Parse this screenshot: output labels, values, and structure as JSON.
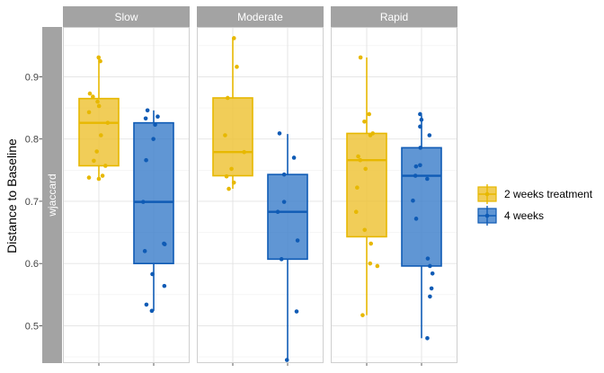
{
  "chart_data": {
    "type": "box",
    "ylabel": "Distance to Baseline",
    "row_strip": "wjaccard",
    "panels": [
      "Slow",
      "Moderate",
      "Rapid"
    ],
    "yticks": [
      0.5,
      0.6,
      0.7,
      0.8,
      0.9
    ],
    "ylim": [
      0.44,
      0.98
    ],
    "grid": true,
    "legend_position": "right",
    "series": [
      {
        "name": "2 weeks treatment",
        "color": "#E7B800",
        "fill": "#EEC233"
      },
      {
        "name": "4 weeks",
        "color": "#0F5BB5",
        "fill": "#3D7FCB"
      }
    ],
    "boxes": [
      {
        "panel": "Slow",
        "series": "2 weeks treatment",
        "whisker_low": 0.736,
        "q1": 0.757,
        "median": 0.826,
        "q3": 0.865,
        "whisker_high": 0.931,
        "points": [
          0.931,
          0.925,
          0.873,
          0.868,
          0.86,
          0.853,
          0.843,
          0.826,
          0.806,
          0.78,
          0.765,
          0.757,
          0.741,
          0.738,
          0.736
        ]
      },
      {
        "panel": "Slow",
        "series": "4 weeks",
        "whisker_low": 0.524,
        "q1": 0.6,
        "median": 0.699,
        "q3": 0.826,
        "whisker_high": 0.846,
        "points": [
          0.846,
          0.836,
          0.833,
          0.823,
          0.8,
          0.766,
          0.699,
          0.632,
          0.631,
          0.62,
          0.583,
          0.564,
          0.534,
          0.524
        ]
      },
      {
        "panel": "Moderate",
        "series": "2 weeks treatment",
        "whisker_low": 0.72,
        "q1": 0.741,
        "median": 0.779,
        "q3": 0.866,
        "whisker_high": 0.962,
        "points": [
          0.962,
          0.916,
          0.866,
          0.806,
          0.779,
          0.752,
          0.74,
          0.73,
          0.72
        ]
      },
      {
        "panel": "Moderate",
        "series": "4 weeks",
        "whisker_low": 0.445,
        "q1": 0.607,
        "median": 0.683,
        "q3": 0.743,
        "whisker_high": 0.808,
        "points": [
          0.809,
          0.77,
          0.743,
          0.699,
          0.683,
          0.637,
          0.607,
          0.523,
          0.445
        ]
      },
      {
        "panel": "Rapid",
        "series": "2 weeks treatment",
        "whisker_low": 0.517,
        "q1": 0.643,
        "median": 0.766,
        "q3": 0.809,
        "whisker_high": 0.931,
        "points": [
          0.931,
          0.84,
          0.828,
          0.809,
          0.806,
          0.772,
          0.766,
          0.752,
          0.722,
          0.683,
          0.654,
          0.632,
          0.6,
          0.596,
          0.517
        ]
      },
      {
        "panel": "Rapid",
        "series": "4 weeks",
        "whisker_low": 0.48,
        "q1": 0.596,
        "median": 0.741,
        "q3": 0.786,
        "whisker_high": 0.838,
        "points": [
          0.84,
          0.831,
          0.82,
          0.806,
          0.786,
          0.758,
          0.756,
          0.741,
          0.736,
          0.701,
          0.672,
          0.608,
          0.596,
          0.584,
          0.56,
          0.547,
          0.48
        ]
      }
    ]
  }
}
